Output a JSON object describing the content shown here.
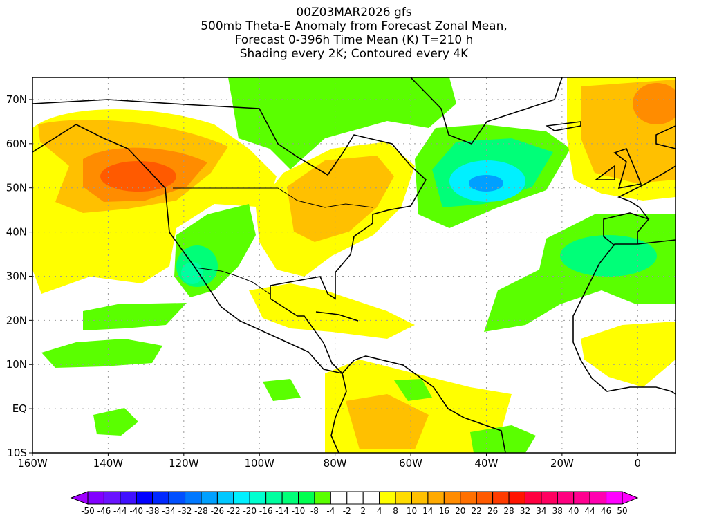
{
  "title": {
    "line1": "00Z03MAR2026 gfs",
    "line2": "500mb Theta-E Anomaly from Forecast Zonal Mean,",
    "line3": "Forecast 0-396h Time Mean (K) T=210 h",
    "line4": "Shading every 2K; Contoured every 4K"
  },
  "map": {
    "lon_range": [
      -160,
      10
    ],
    "lat_range": [
      -10,
      75
    ],
    "lon_ticks": [
      {
        "value": -160,
        "label": "160W"
      },
      {
        "value": -140,
        "label": "140W"
      },
      {
        "value": -120,
        "label": "120W"
      },
      {
        "value": -100,
        "label": "100W"
      },
      {
        "value": -80,
        "label": "80W"
      },
      {
        "value": -60,
        "label": "60W"
      },
      {
        "value": -40,
        "label": "40W"
      },
      {
        "value": -20,
        "label": "20W"
      },
      {
        "value": 0,
        "label": "0"
      }
    ],
    "lat_ticks": [
      {
        "value": 70,
        "label": "70N"
      },
      {
        "value": 60,
        "label": "60N"
      },
      {
        "value": 50,
        "label": "50N"
      },
      {
        "value": 40,
        "label": "40N"
      },
      {
        "value": 30,
        "label": "30N"
      },
      {
        "value": 20,
        "label": "20N"
      },
      {
        "value": 10,
        "label": "10N"
      },
      {
        "value": 0,
        "label": "EQ"
      },
      {
        "value": -10,
        "label": "10S"
      }
    ]
  },
  "colorbar": {
    "labels": [
      "-50",
      "-46",
      "-44",
      "-40",
      "-38",
      "-34",
      "-32",
      "-28",
      "-26",
      "-22",
      "-20",
      "-16",
      "-14",
      "-10",
      "-8",
      "-4",
      "-2",
      "2",
      "4",
      "8",
      "10",
      "14",
      "16",
      "20",
      "22",
      "26",
      "28",
      "32",
      "34",
      "38",
      "40",
      "44",
      "46",
      "50"
    ],
    "colors": [
      "#a000ff",
      "#8200ff",
      "#6a14ff",
      "#4010ff",
      "#0000ff",
      "#0028ff",
      "#0050ff",
      "#0078ff",
      "#00a0ff",
      "#00c8ff",
      "#00f0ff",
      "#00ffd0",
      "#00ffa0",
      "#00ff78",
      "#00ff50",
      "#5aff00",
      "#ffffff",
      "#ffffff",
      "#ffffff",
      "#ffff00",
      "#ffdc00",
      "#ffc000",
      "#ffaa00",
      "#ff8c00",
      "#ff7000",
      "#ff5a00",
      "#ff3c00",
      "#ff1400",
      "#ff0040",
      "#ff0060",
      "#ff0080",
      "#ff0090",
      "#ff00b0",
      "#ff00ff",
      "#ff00ff"
    ]
  }
}
